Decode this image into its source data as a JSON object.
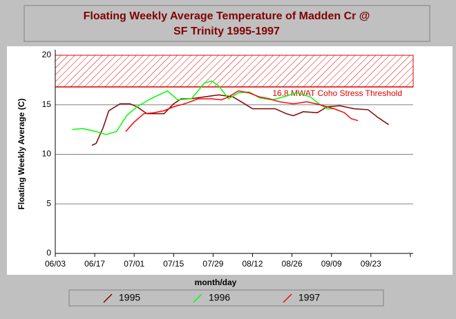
{
  "chart_data": {
    "type": "line",
    "title": "Floating Weekly Average Temperature of Madden Cr @",
    "subtitle": "SF Trinity 1995-1997",
    "x_label": "month/day",
    "y_label": "Floating Weekly Average (C)",
    "xlim": [
      0,
      127
    ],
    "xticks": [
      {
        "value": 0,
        "label": "06/03"
      },
      {
        "value": 14,
        "label": "06/17"
      },
      {
        "value": 28,
        "label": "07/01"
      },
      {
        "value": 42,
        "label": "07/15"
      },
      {
        "value": 56,
        "label": "07/29"
      },
      {
        "value": 70,
        "label": "08/12"
      },
      {
        "value": 84,
        "label": "08/26"
      },
      {
        "value": 98,
        "label": "09/09"
      },
      {
        "value": 112,
        "label": "09/23"
      },
      {
        "value": 126,
        "label": ""
      }
    ],
    "ylim": [
      0,
      20
    ],
    "yticks": [
      0,
      5,
      10,
      15,
      20
    ],
    "grid": true,
    "threshold": {
      "value": 16.8,
      "label": "16.8 MWAT Coho Stress Threshold",
      "color": "#e00000"
    },
    "series": [
      {
        "name": "1995",
        "color": "#800000",
        "x": [
          13,
          14.5,
          17,
          19,
          23,
          26.5,
          29,
          32.5,
          38.6,
          42,
          44.7,
          48,
          53,
          58,
          63,
          66,
          70,
          76,
          78,
          82,
          84.5,
          88,
          93,
          96.5,
          101,
          106,
          111,
          114.6,
          118.3
        ],
        "values": [
          10.9,
          11.1,
          12.7,
          14.4,
          15.1,
          15.1,
          14.8,
          14.1,
          14.1,
          15.1,
          15.6,
          15.6,
          15.8,
          16.0,
          15.8,
          15.3,
          14.6,
          14.6,
          14.6,
          14.1,
          13.9,
          14.3,
          14.2,
          14.8,
          14.9,
          14.6,
          14.5,
          13.7,
          13.0
        ]
      },
      {
        "name": "1996",
        "color": "#00ff00",
        "x": [
          6,
          9.7,
          14.5,
          18,
          21.7,
          25.3,
          29,
          33.8,
          39.8,
          43.4,
          48.3,
          53,
          55.5,
          58,
          61.5,
          65,
          68.8,
          72.4,
          77,
          81,
          85.7,
          90.5,
          94,
          96.5,
          99
        ],
        "values": [
          12.5,
          12.6,
          12.3,
          12.0,
          12.3,
          13.9,
          14.8,
          15.6,
          16.4,
          15.5,
          15.6,
          17.2,
          17.4,
          16.9,
          15.6,
          16.2,
          16.3,
          15.7,
          15.5,
          15.8,
          16.2,
          15.8,
          15.0,
          14.6,
          14.6
        ]
      },
      {
        "name": "1997",
        "color": "#ff0000",
        "x": [
          25,
          27.8,
          31.4,
          35,
          38.6,
          42,
          45.9,
          50.7,
          55.5,
          59,
          61.5,
          65,
          68.8,
          72.4,
          76,
          79.6,
          84.5,
          89.3,
          94,
          99,
          102.6,
          105,
          107.4
        ],
        "values": [
          12.3,
          13.2,
          14.1,
          14.2,
          14.4,
          14.8,
          15.1,
          15.6,
          15.6,
          15.5,
          15.8,
          16.4,
          16.2,
          15.8,
          15.6,
          15.3,
          15.1,
          15.3,
          15.0,
          14.6,
          14.2,
          13.6,
          13.4
        ]
      }
    ]
  }
}
